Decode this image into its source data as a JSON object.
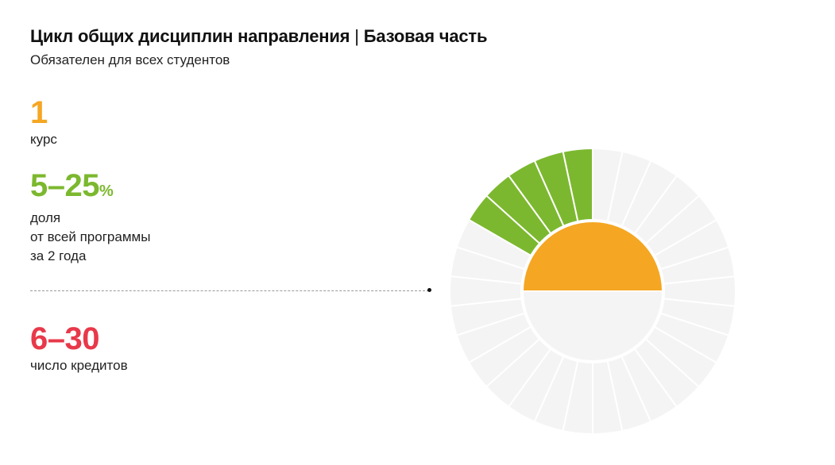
{
  "header": {
    "title": "Цикл общих дисциплин направления",
    "separator": "|",
    "title_part2": "Базовая часть",
    "subtitle": "Обязателен для всех студентов"
  },
  "stats": {
    "course": {
      "value": "1",
      "caption": "курс",
      "color": "#f5a623"
    },
    "share": {
      "value": "5–25",
      "unit": "%",
      "caption": "доля\nот всей программы\nза 2 года",
      "color": "#7cb82f"
    },
    "credits": {
      "value": "6–30",
      "caption": "число кредитов",
      "color": "#e8394a"
    }
  },
  "chart_data": {
    "type": "pie",
    "total_segments": 30,
    "filled_segments": 5,
    "inner_fill_fraction": 0.5,
    "colors": {
      "filled": "#7cb82f",
      "empty": "#f4f4f4",
      "inner": "#f5a623",
      "inner_empty": "#f4f4f4",
      "stroke": "#ffffff"
    }
  }
}
